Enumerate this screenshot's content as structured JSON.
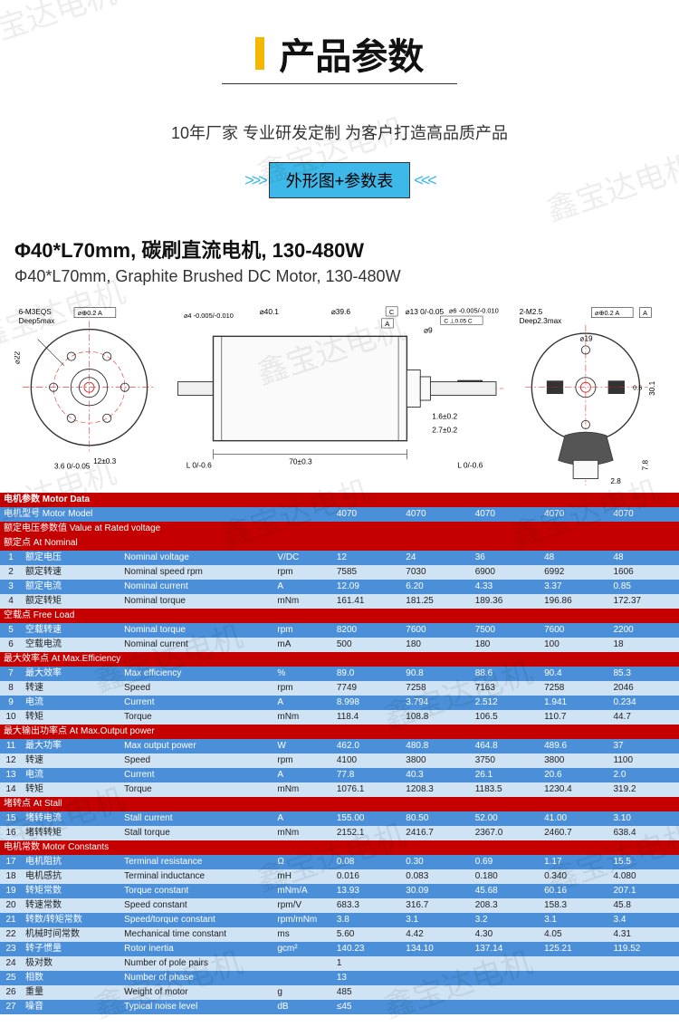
{
  "meta": {
    "watermark_text": "鑫宝达电机",
    "accent_color": "#f5b800",
    "badge_bg": "#3db8e8",
    "header_bg": "#c40000",
    "row_blue_bg": "#4a8fd8",
    "row_light_bg": "#cfe3f5"
  },
  "header": {
    "title": "产品参数",
    "subtitle": "10年厂家 专业研发定制 为客户打造高品质产品",
    "badge": "外形图+参数表"
  },
  "product": {
    "heading_cn": "Φ40*L70mm, 碳刷直流电机, 130-480W",
    "heading_en": "Φ40*L70mm, Graphite Brushed DC Motor, 130-480W"
  },
  "diagram_labels": {
    "left_top": "6-M3EQS",
    "left_top2": "Deep5max",
    "left_gd": "⌀⊕0.2 A",
    "left_dia": "⌀22",
    "left_w": "12±0.3",
    "left_h": "3.6 0/-0.05",
    "mid_d1": "⌀40.1",
    "mid_d1t": "⌀4 -0.005/-0.010",
    "mid_d2": "⌀39.6",
    "mid_d3": "⌀13 0/-0.05",
    "mid_d4": "⌀6 -0.005/-0.010",
    "mid_d5": "⌀9",
    "mid_shaft": "2.7±0.2",
    "mid_shaft2": "1.6±0.2",
    "mid_len": "70±0.3",
    "mid_l1": "L 0/-0.6",
    "mid_l2": "L 0/-0.6",
    "mid_gd": "C ⊥0.05 C",
    "right_top": "2-M2.5",
    "right_top2": "Deep2.3max",
    "right_gd": "⌀⊕0.2 A",
    "right_h": "30.1",
    "right_w": "⌀19",
    "right_foot1": "2.8",
    "right_foot2": "7.8",
    "right_slot": "0.6"
  },
  "table": {
    "header": "电机参数 Motor Data",
    "sections": [
      {
        "label_cn": "电机型号 Motor Model",
        "type": "model",
        "values": [
          "4070",
          "4070",
          "4070",
          "4070",
          "4070"
        ]
      },
      {
        "label_cn": "额定电压参数值 Value at Rated voltage",
        "type": "section"
      },
      {
        "label_cn": "额定点 At Nominal",
        "type": "subsection",
        "rows": [
          {
            "n": "1",
            "cn": "额定电压",
            "en": "Nominal voltage",
            "unit": "V/DC",
            "v": [
              "12",
              "24",
              "36",
              "48",
              "48"
            ]
          },
          {
            "n": "2",
            "cn": "额定转速",
            "en": "Nominal speed rpm",
            "unit": "rpm",
            "v": [
              "7585",
              "7030",
              "6900",
              "6992",
              "1606"
            ]
          },
          {
            "n": "3",
            "cn": "额定电流",
            "en": "Nominal current",
            "unit": "A",
            "v": [
              "12.09",
              "6.20",
              "4.33",
              "3.37",
              "0.85"
            ]
          },
          {
            "n": "4",
            "cn": "额定转矩",
            "en": "Nominal torque",
            "unit": "mNm",
            "v": [
              "161.41",
              "181.25",
              "189.36",
              "196.86",
              "172.37"
            ]
          }
        ]
      },
      {
        "label_cn": "空载点 Free Load",
        "type": "subsection",
        "rows": [
          {
            "n": "5",
            "cn": "空载转速",
            "en": "Nominal torque",
            "unit": "rpm",
            "v": [
              "8200",
              "7600",
              "7500",
              "7600",
              "2200"
            ]
          },
          {
            "n": "6",
            "cn": "空载电流",
            "en": "Nominal current",
            "unit": "mA",
            "v": [
              "500",
              "180",
              "180",
              "100",
              "18"
            ]
          }
        ]
      },
      {
        "label_cn": "最大效率点 At Max.Efficiency",
        "type": "subsection",
        "rows": [
          {
            "n": "7",
            "cn": "最大效率",
            "en": "Max efficiency",
            "unit": "%",
            "v": [
              "89.0",
              "90.8",
              "88.6",
              "90.4",
              "85.3"
            ]
          },
          {
            "n": "8",
            "cn": "转速",
            "en": "Speed",
            "unit": "rpm",
            "v": [
              "7749",
              "7258",
              "7163",
              "7258",
              "2046"
            ]
          },
          {
            "n": "9",
            "cn": "电流",
            "en": "Current",
            "unit": "A",
            "v": [
              "8.998",
              "3.794",
              "2.512",
              "1.941",
              "0.234"
            ]
          },
          {
            "n": "10",
            "cn": "转矩",
            "en": "Torque",
            "unit": "mNm",
            "v": [
              "118.4",
              "108.8",
              "106.5",
              "110.7",
              "44.7"
            ]
          }
        ]
      },
      {
        "label_cn": "最大输出功率点 At Max.Output power",
        "type": "subsection",
        "rows": [
          {
            "n": "11",
            "cn": "最大功率",
            "en": "Max output power",
            "unit": "W",
            "v": [
              "462.0",
              "480.8",
              "464.8",
              "489.6",
              "37"
            ]
          },
          {
            "n": "12",
            "cn": "转速",
            "en": "Speed",
            "unit": "rpm",
            "v": [
              "4100",
              "3800",
              "3750",
              "3800",
              "1100"
            ]
          },
          {
            "n": "13",
            "cn": "电流",
            "en": "Current",
            "unit": "A",
            "v": [
              "77.8",
              "40.3",
              "26.1",
              "20.6",
              "2.0"
            ]
          },
          {
            "n": "14",
            "cn": "转矩",
            "en": "Torque",
            "unit": "mNm",
            "v": [
              "1076.1",
              "1208.3",
              "1183.5",
              "1230.4",
              "319.2"
            ]
          }
        ]
      },
      {
        "label_cn": "堵转点 At Stall",
        "type": "subsection",
        "rows": [
          {
            "n": "15",
            "cn": "堵转电流",
            "en": "Stall current",
            "unit": "A",
            "v": [
              "155.00",
              "80.50",
              "52.00",
              "41.00",
              "3.10"
            ]
          },
          {
            "n": "16",
            "cn": "堵转转矩",
            "en": "Stall torque",
            "unit": "mNm",
            "v": [
              "2152.1",
              "2416.7",
              "2367.0",
              "2460.7",
              "638.4"
            ]
          }
        ]
      },
      {
        "label_cn": "电机常数 Motor Constants",
        "type": "subsection",
        "rows": [
          {
            "n": "17",
            "cn": "电机阻抗",
            "en": "Terminal resistance",
            "unit": "Ω",
            "v": [
              "0.08",
              "0.30",
              "0.69",
              "1.17",
              "15.5"
            ]
          },
          {
            "n": "18",
            "cn": "电机感抗",
            "en": "Terminal inductance",
            "unit": "mH",
            "v": [
              "0.016",
              "0.083",
              "0.180",
              "0.340",
              "4.080"
            ]
          },
          {
            "n": "19",
            "cn": "转矩常数",
            "en": "Torque constant",
            "unit": "mNm/A",
            "v": [
              "13.93",
              "30.09",
              "45.68",
              "60.16",
              "207.1"
            ]
          },
          {
            "n": "20",
            "cn": "转速常数",
            "en": "Speed constant",
            "unit": "rpm/V",
            "v": [
              "683.3",
              "316.7",
              "208.3",
              "158.3",
              "45.8"
            ]
          },
          {
            "n": "21",
            "cn": "转数/转矩常数",
            "en": "Speed/torque constant",
            "unit": "rpm/mNm",
            "v": [
              "3.8",
              "3.1",
              "3.2",
              "3.1",
              "3.4"
            ]
          },
          {
            "n": "22",
            "cn": "机械时间常数",
            "en": "Mechanical time constant",
            "unit": "ms",
            "v": [
              "5.60",
              "4.42",
              "4.30",
              "4.05",
              "4.31"
            ]
          },
          {
            "n": "23",
            "cn": "转子惯量",
            "en": "Rotor inertia",
            "unit": "gcm²",
            "v": [
              "140.23",
              "134.10",
              "137.14",
              "125.21",
              "119.52"
            ]
          },
          {
            "n": "24",
            "cn": "极对数",
            "en": "Number of pole pairs",
            "unit": "",
            "v": [
              "1",
              "",
              "",
              "",
              ""
            ]
          },
          {
            "n": "25",
            "cn": "相数",
            "en": "Number of phase",
            "unit": "",
            "v": [
              "13",
              "",
              "",
              "",
              ""
            ]
          },
          {
            "n": "26",
            "cn": "重量",
            "en": "Weight of motor",
            "unit": "g",
            "v": [
              "485",
              "",
              "",
              "",
              ""
            ]
          },
          {
            "n": "27",
            "cn": "噪音",
            "en": "Typical noise level",
            "unit": "dB",
            "v": [
              "≤45",
              "",
              "",
              "",
              ""
            ]
          }
        ]
      }
    ]
  }
}
